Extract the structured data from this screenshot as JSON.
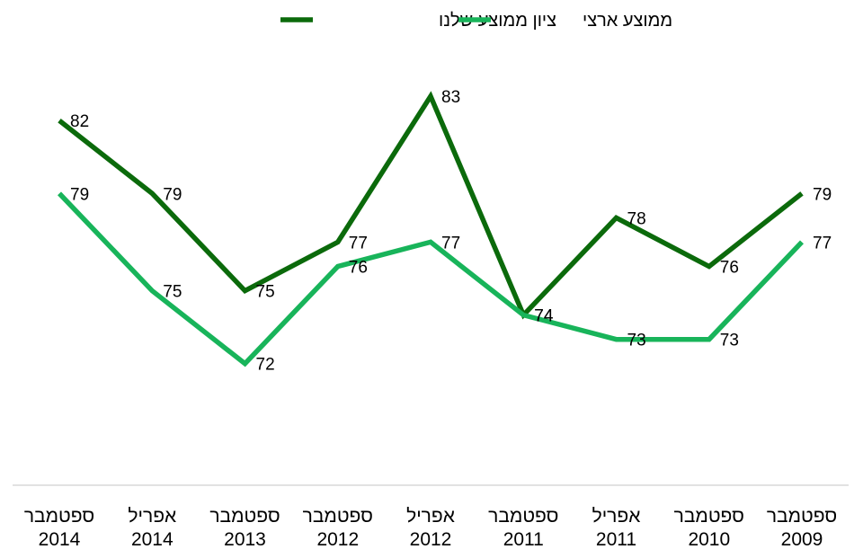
{
  "chart_data": {
    "type": "line",
    "categories": [
      [
        "ספטמבר",
        "2014"
      ],
      [
        "אפריל",
        "2014"
      ],
      [
        "ספטמבר",
        "2013"
      ],
      [
        "ספטמבר",
        "2012"
      ],
      [
        "אפריל",
        "2012"
      ],
      [
        "ספטמבר",
        "2011"
      ],
      [
        "אפריל",
        "2011"
      ],
      [
        "ספטמבר",
        "2010"
      ],
      [
        "ספטמבר",
        "2009"
      ]
    ],
    "series": [
      {
        "name": "ציון ממוצע שלנו",
        "color": "#0b6a0b",
        "values": [
          82,
          79,
          75,
          77,
          83,
          74,
          78,
          76,
          79
        ]
      },
      {
        "name": "ממוצע ארצי",
        "color": "#18b45a",
        "values": [
          79,
          75,
          72,
          76,
          77,
          74,
          73,
          73,
          77
        ]
      }
    ],
    "ylim": [
      67,
      85
    ],
    "grid": false,
    "legend_position": "top-center",
    "data_labels": true
  }
}
